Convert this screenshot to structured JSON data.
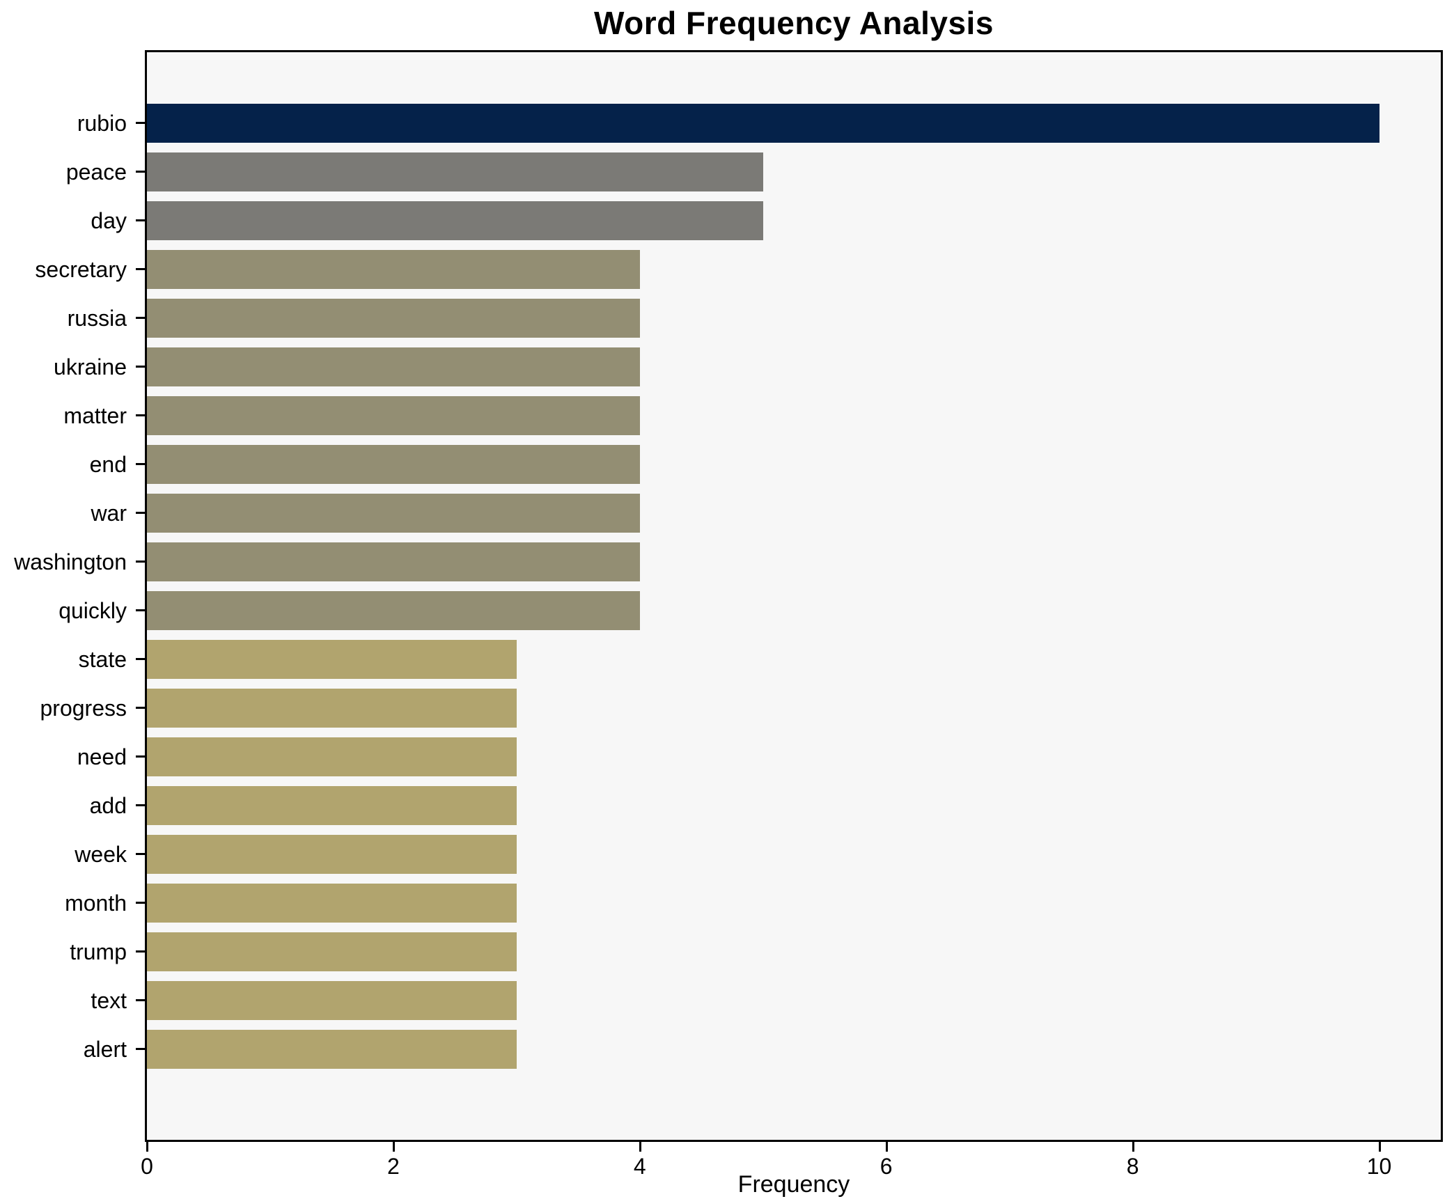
{
  "chart_data": {
    "type": "bar",
    "orientation": "horizontal",
    "title": "Word Frequency Analysis",
    "xlabel": "Frequency",
    "ylabel": "",
    "categories": [
      "rubio",
      "peace",
      "day",
      "secretary",
      "russia",
      "ukraine",
      "matter",
      "end",
      "war",
      "washington",
      "quickly",
      "state",
      "progress",
      "need",
      "add",
      "week",
      "month",
      "trump",
      "text",
      "alert"
    ],
    "values": [
      10,
      5,
      5,
      4,
      4,
      4,
      4,
      4,
      4,
      4,
      4,
      3,
      3,
      3,
      3,
      3,
      3,
      3,
      3,
      3
    ],
    "bar_colors": [
      "#05224a",
      "#7b7a76",
      "#7b7a76",
      "#938e73",
      "#938e73",
      "#938e73",
      "#938e73",
      "#938e73",
      "#938e73",
      "#938e73",
      "#938e73",
      "#b1a46e",
      "#b1a46e",
      "#b1a46e",
      "#b1a46e",
      "#b1a46e",
      "#b1a46e",
      "#b1a46e",
      "#b1a46e",
      "#b1a46e"
    ],
    "xticks": [
      0,
      2,
      4,
      6,
      8,
      10
    ],
    "xlim": [
      0,
      10.5
    ],
    "grid": false,
    "legend": null,
    "plot_bg": "#f7f7f7",
    "figure_bg": "#ffffff"
  }
}
